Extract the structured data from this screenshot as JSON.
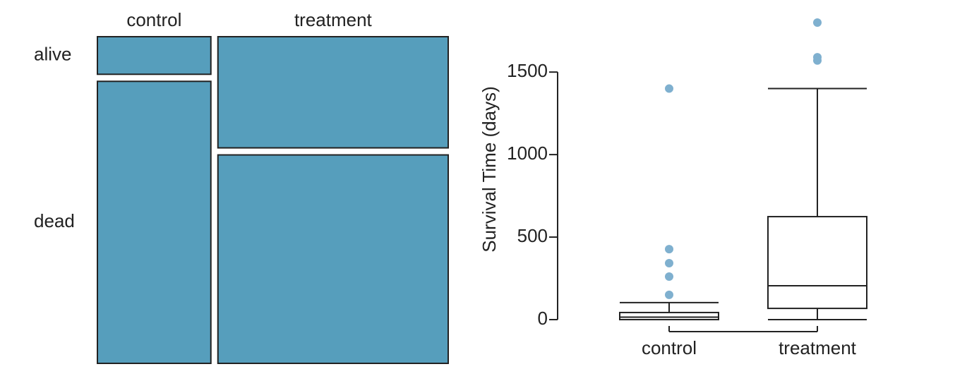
{
  "chart_data": [
    {
      "type": "mosaic",
      "categories": [
        "control",
        "treatment"
      ],
      "series": [
        {
          "name": "alive",
          "values": [
            4,
            24
          ]
        },
        {
          "name": "dead",
          "values": [
            30,
            45
          ]
        }
      ],
      "color": "#569ebc"
    },
    {
      "type": "box",
      "y_label": "Survival Time (days)",
      "categories": [
        "control",
        "treatment"
      ],
      "whisker_low": [
        0,
        0
      ],
      "q1": [
        0,
        68
      ],
      "median": [
        15,
        205
      ],
      "q3": [
        43,
        624
      ],
      "whisker_high": [
        103,
        1400
      ],
      "outliers": [
        [
          150,
          261,
          342,
          427,
          1400
        ],
        [
          1570,
          1590,
          1800
        ]
      ],
      "outlier_color": "#7fb0cf",
      "ylim": [
        0,
        1800
      ],
      "yticks": [
        0,
        500,
        1000,
        1500
      ]
    }
  ]
}
